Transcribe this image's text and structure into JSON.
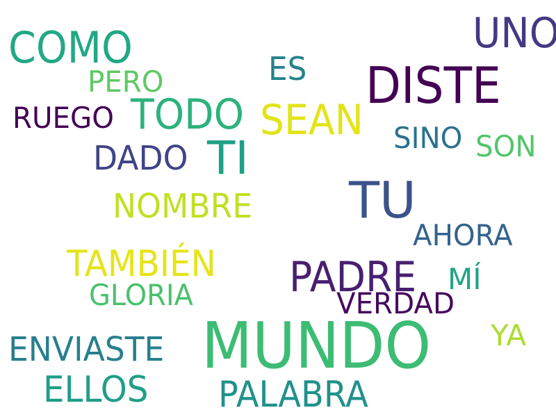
{
  "words": [
    {
      "text": "MUNDO",
      "color": "#3dbc74"
    },
    {
      "text": "DISTE",
      "color": "#440154"
    },
    {
      "text": "TU",
      "color": "#3b528b"
    },
    {
      "text": "COMO",
      "color": "#22a884"
    },
    {
      "text": "UNO",
      "color": "#443983"
    },
    {
      "text": "TI",
      "color": "#1fa088"
    },
    {
      "text": "PADRE",
      "color": "#481f70"
    },
    {
      "text": "TODO",
      "color": "#2db27d"
    },
    {
      "text": "SEAN",
      "color": "#e2e418"
    },
    {
      "text": "TAMBIÉN",
      "color": "#e5e419"
    },
    {
      "text": "PALABRA",
      "color": "#21918c"
    },
    {
      "text": "ELLOS",
      "color": "#1f9e89"
    },
    {
      "text": "ENVIASTE",
      "color": "#277f8e"
    },
    {
      "text": "NOMBRE",
      "color": "#c2df23"
    },
    {
      "text": "DADO",
      "color": "#414487"
    },
    {
      "text": "GLORIA",
      "color": "#4ac16d"
    },
    {
      "text": "VERDAD",
      "color": "#46085c"
    },
    {
      "text": "AHORA",
      "color": "#33638d"
    },
    {
      "text": "RUEGO",
      "color": "#440154"
    },
    {
      "text": "PERO",
      "color": "#5ec962"
    },
    {
      "text": "SINO",
      "color": "#2c718e"
    },
    {
      "text": "SON",
      "color": "#52c569"
    },
    {
      "text": "ES",
      "color": "#26828e"
    },
    {
      "text": "MÍ",
      "color": "#20a486"
    },
    {
      "text": "YA",
      "color": "#addc30"
    }
  ]
}
